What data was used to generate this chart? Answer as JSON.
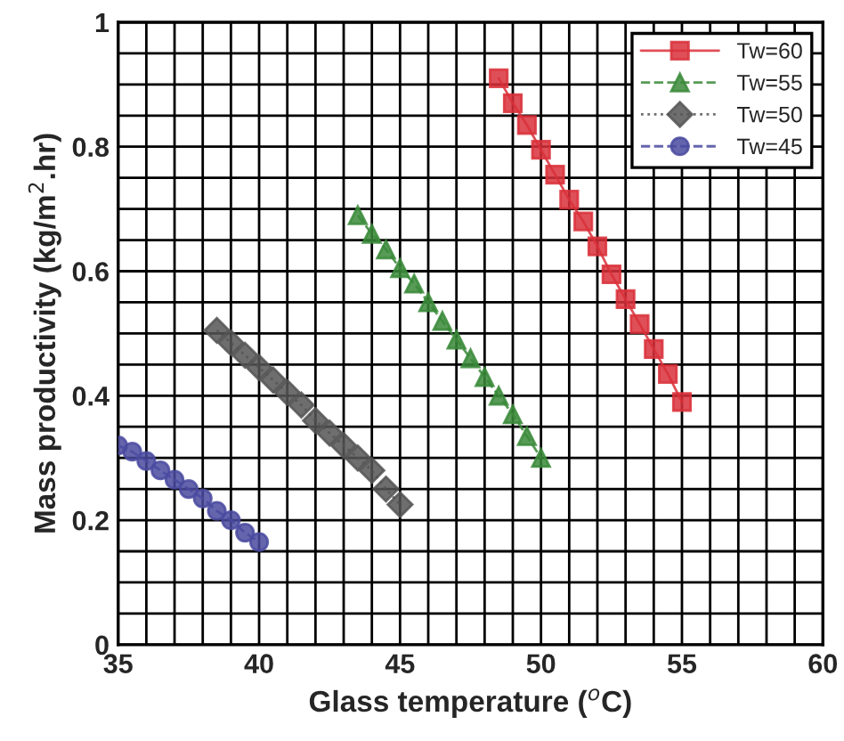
{
  "chart_data": {
    "type": "line",
    "xlabel": "Glass temperature ($^{o}$C)",
    "ylabel": "Mass productivity (kg/m$^{2}$.hr)",
    "xlim": [
      35,
      60
    ],
    "ylim": [
      0,
      1
    ],
    "xticks": [
      35,
      {
        "value": 36,
        "label": null
      },
      {
        "value": 37,
        "label": null
      },
      {
        "value": 38,
        "label": null
      },
      {
        "value": 39,
        "label": null
      },
      40,
      {
        "value": 41,
        "label": null
      },
      {
        "value": 42,
        "label": null
      },
      {
        "value": 43,
        "label": null
      },
      {
        "value": 44,
        "label": null
      },
      45,
      {
        "value": 46,
        "label": null
      },
      {
        "value": 47,
        "label": null
      },
      {
        "value": 48,
        "label": null
      },
      {
        "value": 49,
        "label": null
      },
      50,
      {
        "value": 51,
        "label": null
      },
      {
        "value": 52,
        "label": null
      },
      {
        "value": 53,
        "label": null
      },
      {
        "value": 54,
        "label": null
      },
      55,
      {
        "value": 56,
        "label": null
      },
      {
        "value": 57,
        "label": null
      },
      {
        "value": 58,
        "label": null
      },
      {
        "value": 59,
        "label": null
      },
      60
    ],
    "yticks": [
      0,
      {
        "value": 0.05,
        "label": null
      },
      {
        "value": 0.1,
        "label": null
      },
      {
        "value": 0.15,
        "label": null
      },
      0.2,
      {
        "value": 0.25,
        "label": null
      },
      {
        "value": 0.3,
        "label": null
      },
      {
        "value": 0.35,
        "label": null
      },
      0.4,
      {
        "value": 0.45,
        "label": null
      },
      {
        "value": 0.5,
        "label": null
      },
      {
        "value": 0.55,
        "label": null
      },
      0.6,
      {
        "value": 0.65,
        "label": null
      },
      {
        "value": 0.7,
        "label": null
      },
      {
        "value": 0.75,
        "label": null
      },
      0.8,
      {
        "value": 0.85,
        "label": null
      },
      {
        "value": 0.9,
        "label": null
      },
      {
        "value": 0.95,
        "label": null
      },
      1
    ],
    "grid": true,
    "legend": "top right",
    "series": [
      {
        "name": "Tw=60",
        "color": "#d9303a",
        "marker": "square",
        "line_style": "solid",
        "x": [
          48.5,
          49,
          49.5,
          50,
          50.5,
          51,
          51.5,
          52,
          52.5,
          53,
          53.5,
          54,
          54.5,
          55
        ],
        "values": [
          0.91,
          0.87,
          0.835,
          0.795,
          0.755,
          0.715,
          0.68,
          0.64,
          0.595,
          0.555,
          0.515,
          0.475,
          0.435,
          0.39
        ]
      },
      {
        "name": "Tw=55",
        "color": "#3a8a3a",
        "marker": "triangle",
        "line_style": "dashed",
        "x": [
          43.5,
          44,
          44.5,
          45,
          45.5,
          46,
          46.5,
          47,
          47.5,
          48,
          48.5,
          49,
          49.5,
          50
        ],
        "values": [
          0.69,
          0.66,
          0.635,
          0.605,
          0.58,
          0.55,
          0.52,
          0.49,
          0.46,
          0.43,
          0.4,
          0.37,
          0.335,
          0.3
        ]
      },
      {
        "name": "Tw=50",
        "color": "#555555",
        "marker": "diamond",
        "line_style": "dotted",
        "x": [
          38.5,
          39,
          39.5,
          40,
          40.5,
          41,
          41.5,
          42,
          42.5,
          43,
          43.5,
          44,
          44.5,
          45
        ],
        "values": [
          0.505,
          0.485,
          0.465,
          0.445,
          0.425,
          0.405,
          0.385,
          0.36,
          0.34,
          0.32,
          0.3,
          0.28,
          0.25,
          0.225
        ]
      },
      {
        "name": "Tw=45",
        "color": "#4a4aa0",
        "marker": "circle",
        "line_style": "dashed",
        "x": [
          35,
          35.5,
          36,
          36.5,
          37,
          37.5,
          38,
          38.5,
          39,
          39.5,
          40
        ],
        "values": [
          0.32,
          0.31,
          0.295,
          0.28,
          0.265,
          0.25,
          0.235,
          0.215,
          0.2,
          0.18,
          0.165
        ]
      }
    ]
  }
}
